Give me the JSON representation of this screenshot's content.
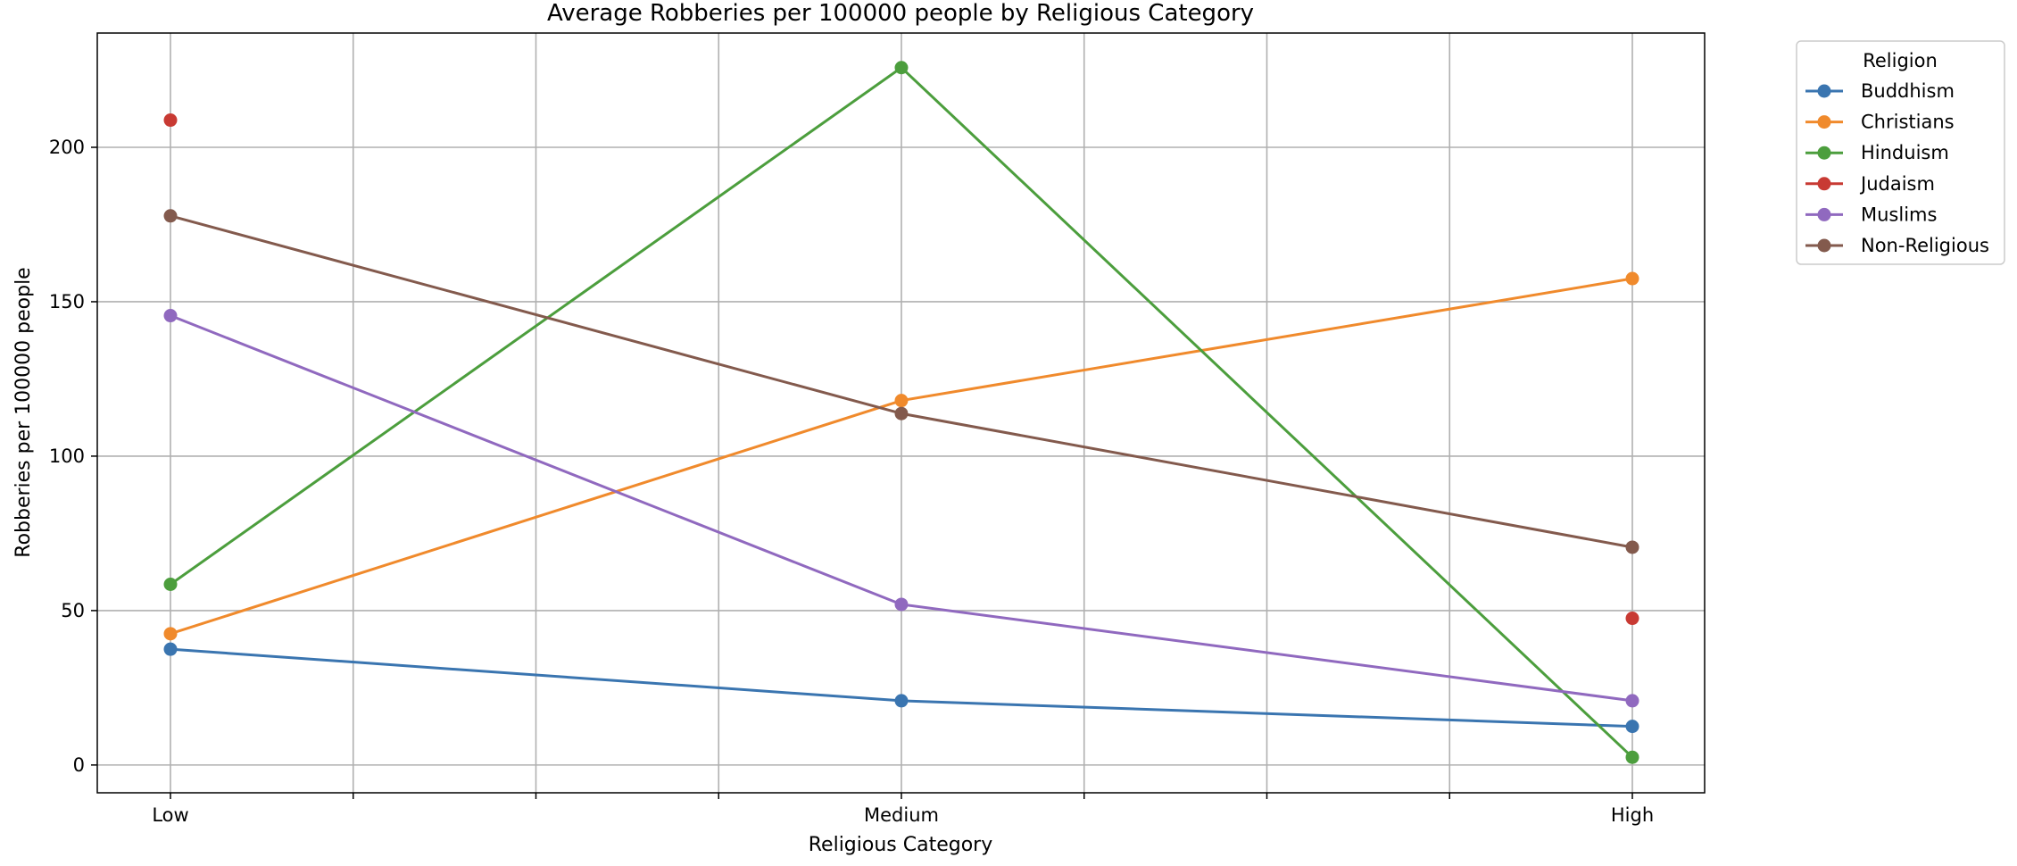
{
  "chart_data": {
    "type": "line",
    "title": "Average Robberies per 100000 people by Religious Category",
    "xlabel": "Religious Category",
    "ylabel": "Robberies per 100000 people",
    "categories": [
      "Low",
      "Medium",
      "High"
    ],
    "ylim": [
      -9,
      237
    ],
    "yticks": [
      0,
      50,
      100,
      150,
      200
    ],
    "grid": true,
    "legend": {
      "title": "Religion",
      "placement": "outside-top-right"
    },
    "series": [
      {
        "name": "Buddhism",
        "color": "#3a75b0",
        "values": [
          37.5,
          20.8,
          12.5
        ]
      },
      {
        "name": "Christians",
        "color": "#f08a2c",
        "values": [
          42.5,
          118,
          157.5
        ]
      },
      {
        "name": "Hinduism",
        "color": "#4c9e3d",
        "values": [
          58.5,
          225.8,
          2.5
        ]
      },
      {
        "name": "Judaism",
        "color": "#c83a33",
        "values": [
          208.8,
          null,
          47.5
        ]
      },
      {
        "name": "Muslims",
        "color": "#9069bf",
        "values": [
          145.5,
          52,
          20.8
        ]
      },
      {
        "name": "Non-Religious",
        "color": "#835a4d",
        "values": [
          177.8,
          113.8,
          70.5
        ]
      }
    ]
  }
}
